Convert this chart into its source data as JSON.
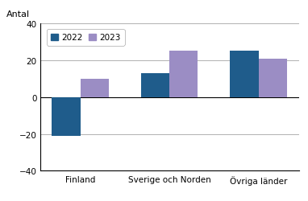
{
  "categories": [
    "Finland",
    "Sverige och Norden",
    "Övriga länder"
  ],
  "values_2022": [
    -21,
    13,
    25
  ],
  "values_2023": [
    10,
    25,
    21
  ],
  "color_2022": "#1f5c8b",
  "color_2023": "#9b8dc4",
  "ylabel": "Antal",
  "ylim": [
    -40,
    40
  ],
  "yticks": [
    -40,
    -20,
    0,
    20,
    40
  ],
  "legend_labels": [
    "2022",
    "2023"
  ],
  "bar_width": 0.32,
  "grid_color": "#b0b0b0",
  "bg_color": "#ffffff"
}
